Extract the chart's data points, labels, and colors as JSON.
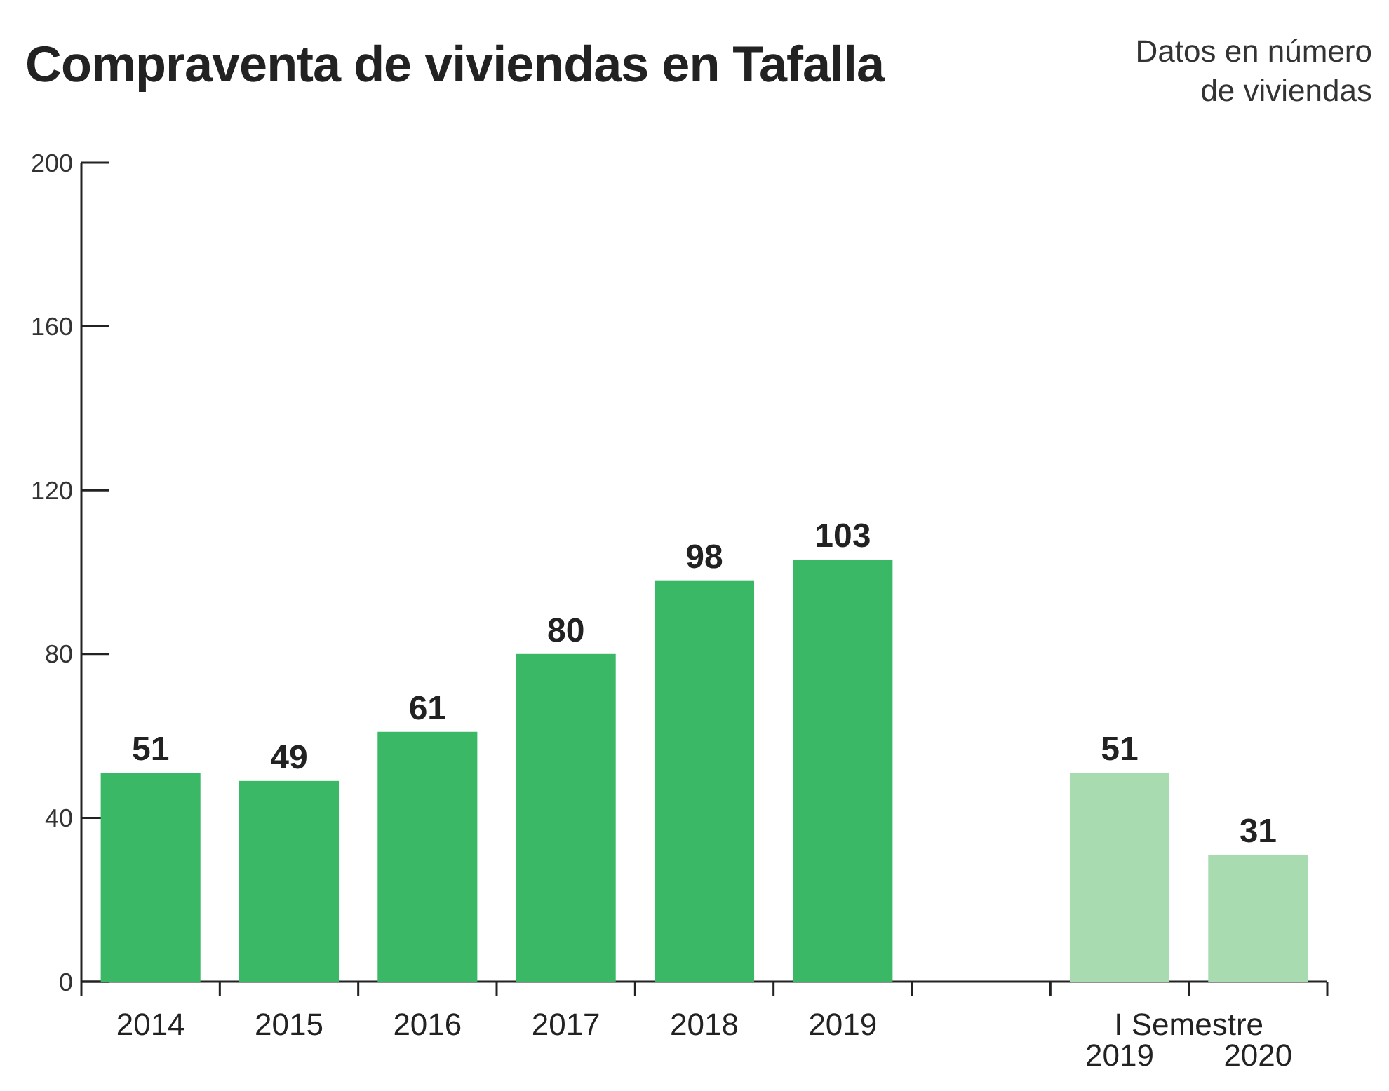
{
  "chart_data": {
    "type": "bar",
    "title": "Compraventa de viviendas en Tafalla",
    "subtitle": "Datos en número de viviendas",
    "categories": [
      "2014",
      "2015",
      "2016",
      "2017",
      "2018",
      "2019",
      null,
      "2019",
      "2020"
    ],
    "values": [
      51,
      49,
      61,
      80,
      98,
      103,
      null,
      51,
      31
    ],
    "colors": [
      "#3bb866",
      "#3bb866",
      "#3bb866",
      "#3bb866",
      "#3bb866",
      "#3bb866",
      null,
      "#a8dbb0",
      "#a8dbb0"
    ],
    "ylim": [
      0,
      200
    ],
    "yticks": [
      0,
      40,
      80,
      120,
      160,
      200
    ],
    "grid": false,
    "data_labels": true,
    "annotations": [
      {
        "text": "I Semestre"
      }
    ]
  }
}
